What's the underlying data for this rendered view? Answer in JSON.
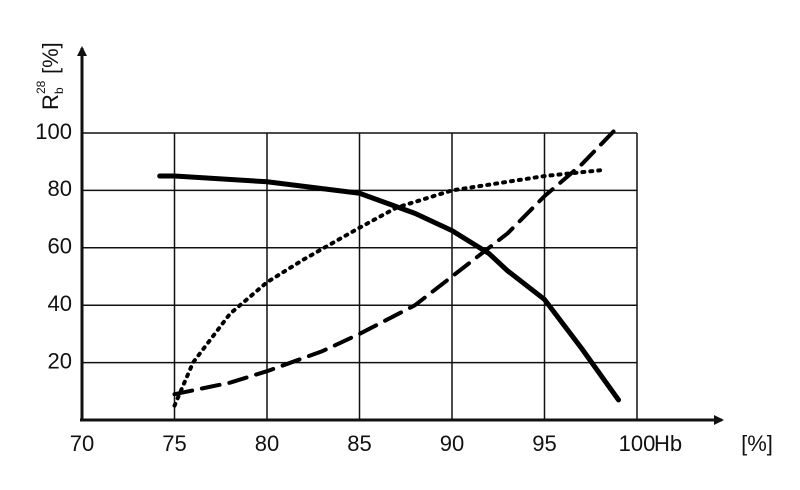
{
  "chart_data": {
    "type": "line",
    "ylabel": {
      "base": "R",
      "sub": "b",
      "sup": "28",
      "unit": "[%]"
    },
    "xlabel": "Hb",
    "xunit": "[%]",
    "xlim": [
      70,
      100
    ],
    "ylim": [
      0,
      100
    ],
    "xticks": [
      70,
      75,
      80,
      85,
      90,
      95,
      100
    ],
    "yticks": [
      20,
      40,
      60,
      80,
      100
    ],
    "grid": true,
    "series": [
      {
        "color": "#000000",
        "style": "solid",
        "width": 5,
        "x": [
          74.2,
          75,
          80,
          85,
          88,
          90,
          92,
          93,
          95,
          97,
          99
        ],
        "values": [
          85,
          85,
          83,
          79,
          72,
          66,
          58,
          52,
          42,
          25,
          7
        ]
      },
      {
        "color": "#000000",
        "style": "dotted",
        "width": 4,
        "x": [
          75,
          76,
          78,
          80,
          82,
          85,
          87,
          90,
          95,
          98
        ],
        "values": [
          5,
          20,
          37,
          48,
          56,
          67,
          74,
          80,
          85,
          87
        ]
      },
      {
        "color": "#000000",
        "style": "dashed",
        "width": 4,
        "x": [
          75,
          78,
          80,
          83,
          85,
          88,
          90,
          93,
          95,
          97,
          98.8
        ],
        "values": [
          9,
          13,
          17,
          24,
          30,
          40,
          50,
          65,
          78,
          89,
          101
        ]
      }
    ]
  }
}
